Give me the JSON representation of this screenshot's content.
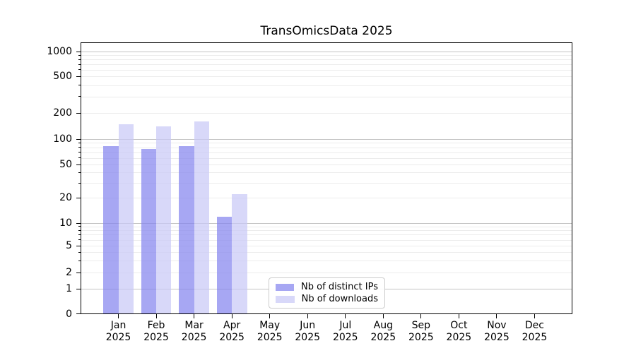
{
  "chart_data": {
    "type": "bar",
    "title": "TransOmicsData 2025",
    "categories": [
      "Jan 2025",
      "Feb 2025",
      "Mar 2025",
      "Apr 2025",
      "May 2025",
      "Jun 2025",
      "Jul 2025",
      "Aug 2025",
      "Sep 2025",
      "Oct 2025",
      "Nov 2025",
      "Dec 2025"
    ],
    "series": [
      {
        "name": "Nb of distinct IPs",
        "color": "#8585ef",
        "alpha": 0.72,
        "values": [
          83,
          76,
          83,
          12,
          0,
          0,
          0,
          0,
          0,
          0,
          0,
          0
        ]
      },
      {
        "name": "Nb of downloads",
        "color": "#c9c9f7",
        "alpha": 0.72,
        "values": [
          147,
          139,
          159,
          22,
          0,
          0,
          0,
          0,
          0,
          0,
          0,
          0
        ]
      }
    ],
    "y_axis": {
      "scale": "symlog",
      "tick_labels": [
        0,
        1,
        2,
        5,
        10,
        20,
        50,
        100,
        200,
        500,
        1000
      ],
      "top_value": 1200
    },
    "grid": true,
    "legend_position": "lower center",
    "colors": {
      "major_grid": "#c3c3c3",
      "minor_grid": "#ececec",
      "axis": "#000000",
      "legend_border": "#cccccc"
    }
  }
}
